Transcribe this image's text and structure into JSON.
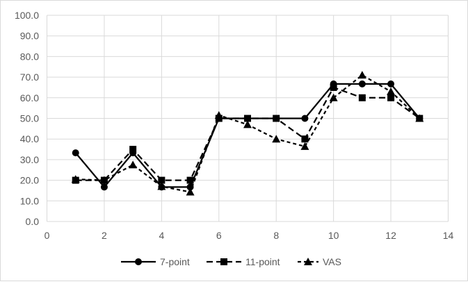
{
  "chart_data": {
    "type": "line",
    "title": "",
    "xlabel": "",
    "ylabel": "",
    "xlim": [
      0,
      14
    ],
    "ylim": [
      0,
      100
    ],
    "x_ticks": [
      "0",
      "2",
      "4",
      "6",
      "8",
      "10",
      "12",
      "14"
    ],
    "y_ticks": [
      "0.0",
      "10.0",
      "20.0",
      "30.0",
      "40.0",
      "50.0",
      "60.0",
      "70.0",
      "80.0",
      "90.0",
      "100.0"
    ],
    "grid": true,
    "legend_position": "bottom",
    "x": [
      1,
      2,
      3,
      4,
      5,
      6,
      7,
      8,
      9,
      10,
      11,
      12,
      13
    ],
    "series": [
      {
        "name": "7-point",
        "marker": "circle",
        "line": "solid",
        "values": [
          33.3,
          16.7,
          33.3,
          16.7,
          16.7,
          50.0,
          50.0,
          50.0,
          50.0,
          66.7,
          66.7,
          66.7,
          50.0
        ]
      },
      {
        "name": "11-point",
        "marker": "square",
        "line": "dash",
        "values": [
          20.0,
          20.0,
          35.0,
          20.0,
          20.0,
          50.0,
          50.0,
          50.0,
          40.0,
          65.0,
          60.0,
          60.0,
          50.0
        ]
      },
      {
        "name": "VAS",
        "marker": "triangle",
        "line": "short-dash",
        "values": [
          20.5,
          20.0,
          27.5,
          17.0,
          14.3,
          51.5,
          47.0,
          40.0,
          36.4,
          60.0,
          71.0,
          63.0,
          50.0
        ]
      }
    ]
  },
  "legend": {
    "items": [
      "7-point",
      "11-point",
      "VAS"
    ]
  }
}
